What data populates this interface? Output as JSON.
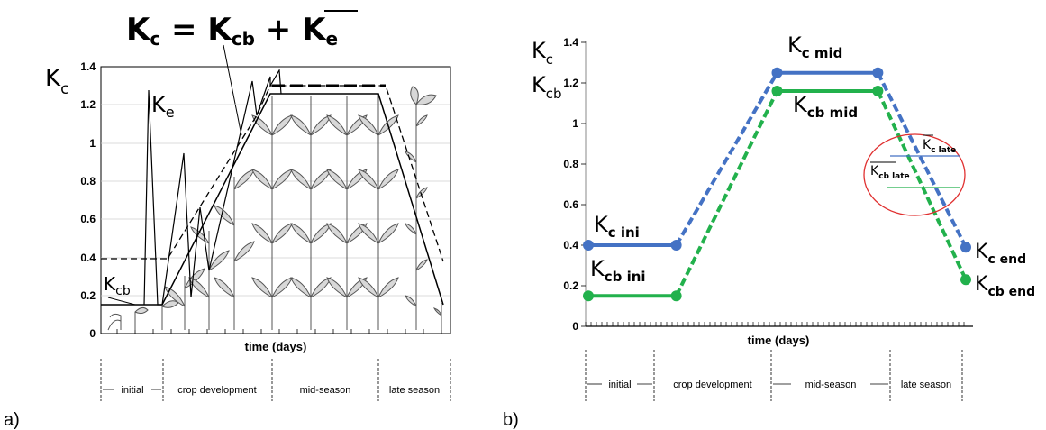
{
  "chart_data": [
    {
      "panel_label": "a)",
      "type": "line",
      "equation": {
        "lhs": "K",
        "lhs_sub": "c",
        "rhs1": "K",
        "rhs1_sub": "cb",
        "rhs2": "K",
        "rhs2_sub": "e"
      },
      "ylabel": {
        "base": "K",
        "sub": "c"
      },
      "xlabel": "time (days)",
      "ylim": [
        0,
        1.4
      ],
      "yticks": [
        "0",
        "0.2",
        "0.4",
        "0.6",
        "0.8",
        "1",
        "1.2",
        "1.4"
      ],
      "stages": [
        "initial",
        "crop development",
        "mid-season",
        "late season"
      ],
      "annotations": [
        {
          "base": "K",
          "sub": "e"
        },
        {
          "base": "K",
          "sub": "cb"
        }
      ]
    },
    {
      "panel_label": "b)",
      "type": "line",
      "xlabel": "time (days)",
      "ylabel": {
        "line1": "K",
        "line1_sub": "c",
        "line2": "K",
        "line2_sub": "cb"
      },
      "ylim": [
        0,
        1.4
      ],
      "yticks": [
        "0",
        "0.2",
        "0.4",
        "0.6",
        "0.8",
        "1",
        "1.2",
        "1.4"
      ],
      "stages": [
        "initial",
        "crop development",
        "mid-season",
        "late season"
      ],
      "series": [
        {
          "name": "Kc",
          "color": "#4472c4",
          "points": [
            [
              0,
              0.4
            ],
            [
              0.233,
              0.4
            ],
            [
              0.5,
              1.25
            ],
            [
              0.767,
              1.25
            ],
            [
              1.0,
              0.39
            ]
          ]
        },
        {
          "name": "Kcb",
          "color": "#22b14c",
          "points": [
            [
              0,
              0.15
            ],
            [
              0.233,
              0.15
            ],
            [
              0.5,
              1.16
            ],
            [
              0.767,
              1.16
            ],
            [
              1.0,
              0.23
            ]
          ]
        }
      ],
      "point_labels": [
        {
          "base": "K",
          "sub": "c ini"
        },
        {
          "base": "K",
          "sub": "cb ini"
        },
        {
          "base": "K",
          "sub": "c mid"
        },
        {
          "base": "K",
          "sub": "cb mid"
        },
        {
          "base": "K",
          "sub": "c end"
        },
        {
          "base": "K",
          "sub": "cb end"
        },
        {
          "base": "K",
          "sub": "c late"
        },
        {
          "base": "K",
          "sub": "cb late"
        }
      ],
      "highlight_color": "#e03030"
    }
  ]
}
